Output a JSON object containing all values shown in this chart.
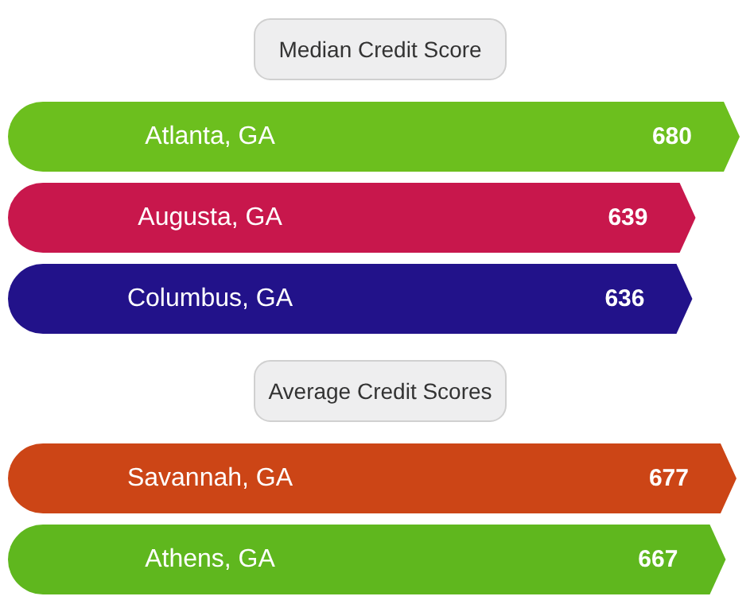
{
  "chart_data": [
    {
      "type": "bar",
      "orientation": "horizontal",
      "title": "Median Credit Score",
      "categories": [
        "Atlanta, GA",
        "Augusta, GA",
        "Columbus, GA"
      ],
      "values": [
        680,
        639,
        636
      ],
      "colors": [
        "#6cbf1e",
        "#c8174c",
        "#22128a"
      ],
      "data_labels": true
    },
    {
      "type": "bar",
      "orientation": "horizontal",
      "title": "Average Credit Scores",
      "categories": [
        "Savannah, GA",
        "Athens, GA"
      ],
      "values": [
        677,
        667
      ],
      "colors": [
        "#cc4516",
        "#5fb71e"
      ],
      "data_labels": true
    }
  ]
}
